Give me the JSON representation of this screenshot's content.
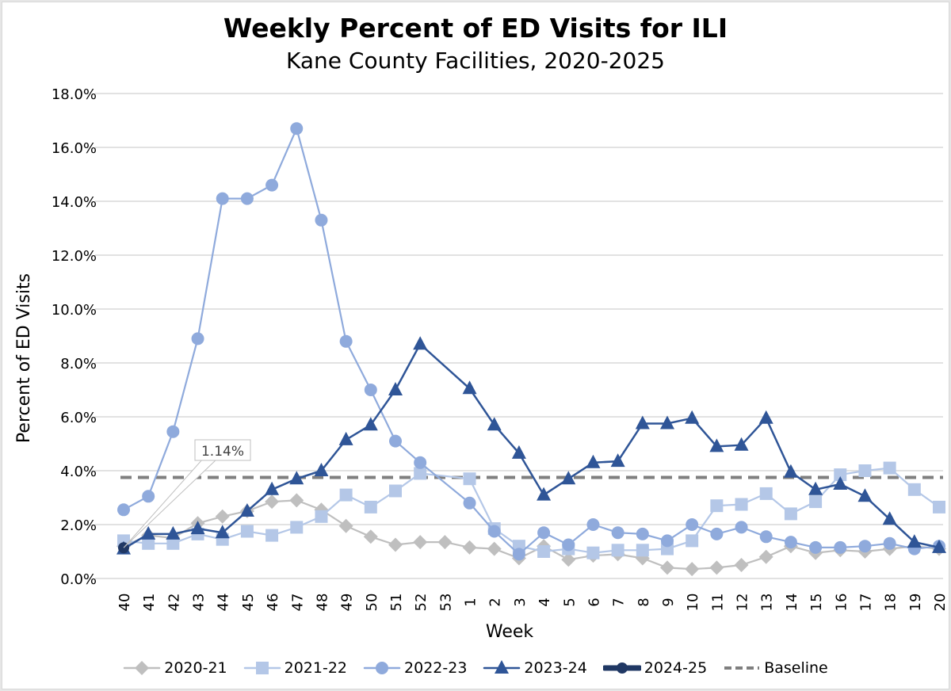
{
  "chart_data": {
    "type": "line",
    "title": "Weekly Percent of ED Visits for ILI",
    "subtitle": "Kane County Facilities, 2020-2025",
    "xlabel": "Week",
    "ylabel": "Percent of ED Visits",
    "ylim": [
      0,
      18
    ],
    "yticks": [
      "0.0%",
      "2.0%",
      "4.0%",
      "6.0%",
      "8.0%",
      "10.0%",
      "12.0%",
      "14.0%",
      "16.0%",
      "18.0%"
    ],
    "grid": true,
    "legend_position": "bottom",
    "categories": [
      "40",
      "41",
      "42",
      "43",
      "44",
      "45",
      "46",
      "47",
      "48",
      "49",
      "50",
      "51",
      "52",
      "53",
      "1",
      "2",
      "3",
      "4",
      "5",
      "6",
      "7",
      "8",
      "9",
      "10",
      "11",
      "12",
      "13",
      "14",
      "15",
      "16",
      "17",
      "18",
      "19",
      "20"
    ],
    "series": [
      {
        "name": "2020-21",
        "color": "#bfbfbf",
        "marker": "diamond",
        "values": [
          1.2,
          1.6,
          1.5,
          2.05,
          2.3,
          2.5,
          2.85,
          2.9,
          2.55,
          1.95,
          1.55,
          1.25,
          1.35,
          1.35,
          1.15,
          1.1,
          0.75,
          1.2,
          0.7,
          0.85,
          0.9,
          0.75,
          0.4,
          0.35,
          0.4,
          0.5,
          0.8,
          1.2,
          0.95,
          1.05,
          1.0,
          1.1,
          1.2,
          1.1
        ]
      },
      {
        "name": "2021-22",
        "color": "#b4c7e7",
        "marker": "square",
        "values": [
          1.4,
          1.3,
          1.3,
          1.65,
          1.45,
          1.75,
          1.6,
          1.9,
          2.3,
          3.1,
          2.65,
          3.25,
          3.9,
          null,
          3.7,
          1.85,
          1.2,
          1.0,
          1.1,
          0.95,
          1.05,
          1.05,
          1.1,
          1.4,
          2.7,
          2.75,
          3.15,
          2.4,
          2.85,
          3.85,
          4.0,
          4.1,
          3.3,
          2.65
        ]
      },
      {
        "name": "2022-23",
        "color": "#8faadc",
        "marker": "circle",
        "values": [
          2.55,
          3.05,
          5.45,
          8.9,
          14.1,
          14.1,
          14.6,
          16.7,
          13.3,
          8.8,
          7.0,
          5.1,
          4.3,
          null,
          2.8,
          1.75,
          0.9,
          1.7,
          1.25,
          2.0,
          1.7,
          1.65,
          1.4,
          2.0,
          1.65,
          1.9,
          1.55,
          1.35,
          1.15,
          1.15,
          1.2,
          1.3,
          1.1,
          1.2
        ]
      },
      {
        "name": "2023-24",
        "color": "#2f5597",
        "marker": "triangle",
        "values": [
          1.1,
          1.65,
          1.65,
          1.85,
          1.7,
          2.5,
          3.3,
          3.7,
          4.0,
          5.15,
          5.7,
          7.0,
          8.7,
          null,
          7.05,
          5.7,
          4.65,
          3.1,
          3.7,
          4.3,
          4.35,
          5.75,
          5.75,
          5.95,
          4.9,
          4.95,
          5.95,
          3.95,
          3.3,
          3.5,
          3.05,
          2.2,
          1.35,
          1.15
        ]
      },
      {
        "name": "2024-25",
        "color": "#203864",
        "marker": "circle-thick",
        "values": [
          1.14,
          null,
          null,
          null,
          null,
          null,
          null,
          null,
          null,
          null,
          null,
          null,
          null,
          null,
          null,
          null,
          null,
          null,
          null,
          null,
          null,
          null,
          null,
          null,
          null,
          null,
          null,
          null,
          null,
          null,
          null,
          null,
          null,
          null
        ]
      },
      {
        "name": "Baseline",
        "color": "#7f7f7f",
        "marker": "dashed",
        "constant": 3.75
      }
    ],
    "annotations": [
      {
        "series": "2024-25",
        "week": "40",
        "text": "1.14%"
      }
    ]
  }
}
